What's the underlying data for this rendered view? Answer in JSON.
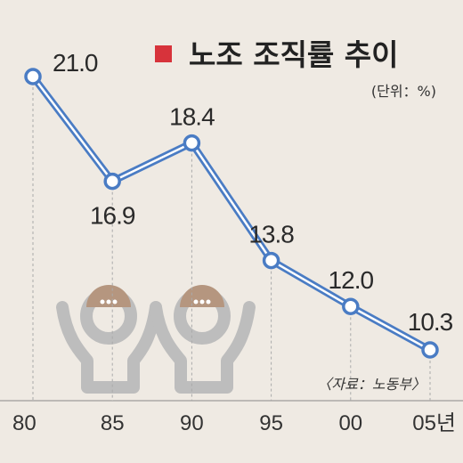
{
  "title": "노조 조직률 추이",
  "unit": "(단위：%)",
  "source": "〈자료：노동부〉",
  "colors": {
    "background": "#efeae3",
    "line": "#4a7cc4",
    "marker": "#d7333b",
    "grid": "#aaaaaa",
    "illustration": "#bdbdbd",
    "illustration_accent": "#b5967f"
  },
  "icons": [
    "people-cheering-icon",
    "people-cheering-icon"
  ],
  "chart_data": {
    "type": "line",
    "title": "노조 조직률 추이",
    "x": [
      "80",
      "85",
      "90",
      "95",
      "00",
      "05년"
    ],
    "values": [
      21.0,
      16.9,
      18.4,
      13.8,
      12.0,
      10.3
    ],
    "labels": [
      "21.0",
      "16.9",
      "18.4",
      "13.8",
      "12.0",
      "10.3"
    ],
    "ylabel": "(단위：%)",
    "ylim": [
      10.3,
      21.0
    ],
    "grid": "vertical dashed",
    "legend": "top-right"
  }
}
